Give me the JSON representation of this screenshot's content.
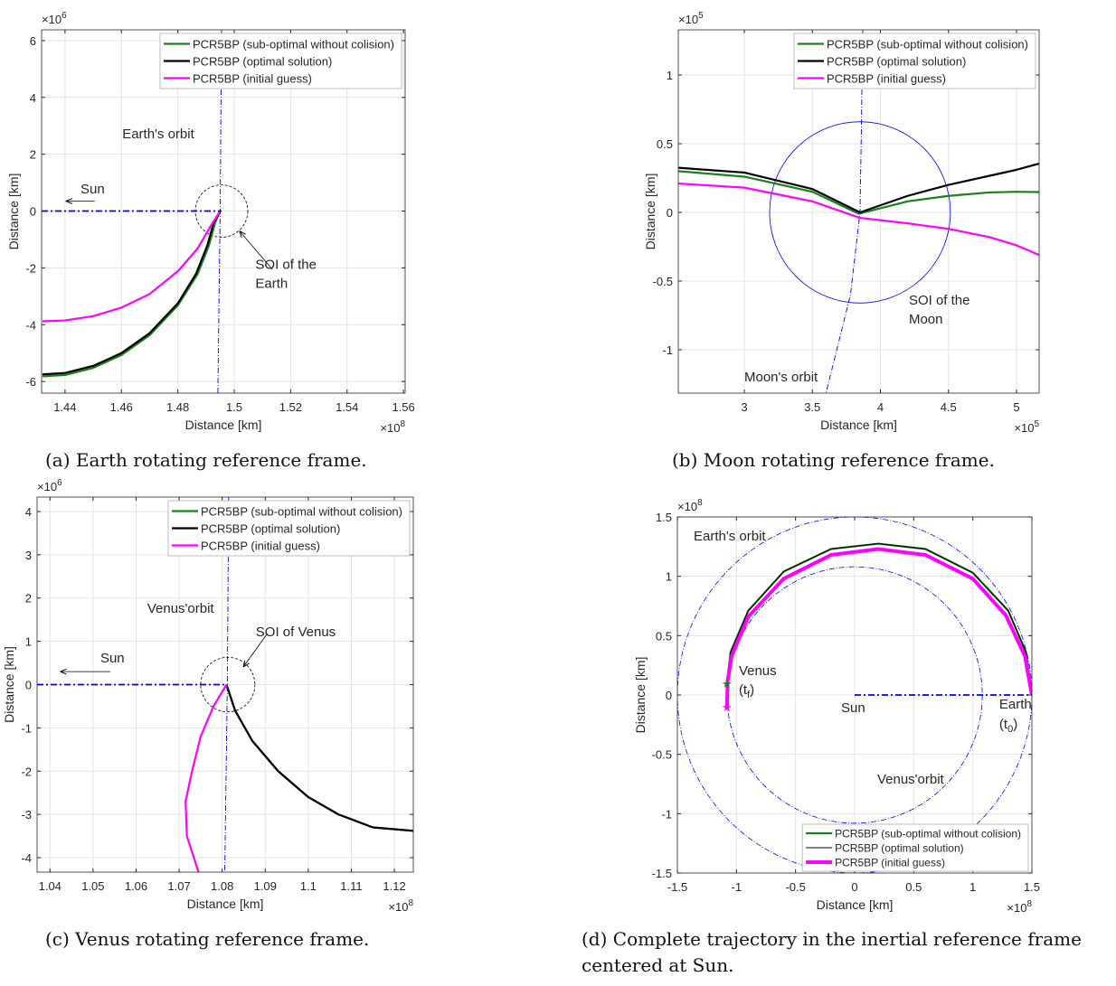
{
  "captions": [
    "(a) Earth rotating reference frame.",
    "(b) Moon rotating reference frame.",
    "(c) Venus rotating reference frame.",
    "(d) Complete trajectory in the inertial reference frame centered at Sun."
  ],
  "colors": {
    "sub_optimal": "#1a801a",
    "optimal": "#000000",
    "initial_guess": "#ff00ff",
    "orbit": "#0000ff",
    "soi": "#000000"
  },
  "chart_data": [
    {
      "type": "line",
      "xlabel": "Distance [km]",
      "ylabel": "Distance [km]",
      "x_exponent": "8",
      "y_exponent": "6",
      "xlim": [
        1.4317,
        1.5606
      ],
      "ylim": [
        -6.41,
        6.38
      ],
      "xticks": [
        1.44,
        1.46,
        1.48,
        1.5,
        1.52,
        1.54,
        1.56
      ],
      "xticklabels": [
        "1.44",
        "1.46",
        "1.48",
        "1.5",
        "1.52",
        "1.54",
        "1.56"
      ],
      "yticks": [
        -6,
        -4,
        -2,
        0,
        2,
        4,
        6
      ],
      "yticklabels": [
        "-6",
        "-4",
        "-2",
        "0",
        "2",
        "4",
        "6"
      ],
      "grid": true,
      "legend_placement": "top-right",
      "series": [
        {
          "name": "PCR5BP (sub-optimal without colision)",
          "color": "#1a801a",
          "legend": true,
          "points": [
            [
              1.432,
              -5.82
            ],
            [
              1.44,
              -5.77
            ],
            [
              1.45,
              -5.52
            ],
            [
              1.46,
              -5.07
            ],
            [
              1.47,
              -4.37
            ],
            [
              1.48,
              -3.32
            ],
            [
              1.487,
              -2.22
            ],
            [
              1.491,
              -1.22
            ],
            [
              1.4932,
              -0.42
            ],
            [
              1.4937,
              -0.3
            ],
            [
              1.495,
              0
            ]
          ]
        },
        {
          "name": "PCR5BP (optimal solution)",
          "color": "#000000",
          "legend": true,
          "points": [
            [
              1.432,
              -5.75
            ],
            [
              1.44,
              -5.7
            ],
            [
              1.45,
              -5.45
            ],
            [
              1.46,
              -5.0
            ],
            [
              1.47,
              -4.3
            ],
            [
              1.48,
              -3.25
            ],
            [
              1.4865,
              -2.2
            ],
            [
              1.4905,
              -1.2
            ],
            [
              1.4927,
              -0.4
            ],
            [
              1.4935,
              -0.27
            ],
            [
              1.495,
              0
            ]
          ]
        },
        {
          "name": "PCR5BP (initial guess)",
          "color": "#ff00ff",
          "legend": true,
          "points": [
            [
              1.432,
              -3.88
            ],
            [
              1.44,
              -3.85
            ],
            [
              1.45,
              -3.7
            ],
            [
              1.46,
              -3.4
            ],
            [
              1.47,
              -2.92
            ],
            [
              1.48,
              -2.12
            ],
            [
              1.487,
              -1.32
            ],
            [
              1.4915,
              -0.55
            ],
            [
              1.495,
              0
            ]
          ]
        },
        {
          "name": "",
          "color": "#0000ff",
          "style": "orbit",
          "points": [
            [
              1.4955,
              6.38
            ],
            [
              1.495,
              0
            ],
            [
              1.4942,
              -6.41
            ]
          ]
        },
        {
          "name": "",
          "color": "#0000ff",
          "style": "sunline",
          "points": [
            [
              1.4317,
              0
            ],
            [
              1.4955,
              0
            ]
          ]
        }
      ],
      "ellipses": [
        {
          "cx": 1.4955,
          "cy": 0,
          "rx": 0.0093,
          "ry": 0.92
        }
      ],
      "arrows": [
        [
          1.4505,
          0.35,
          1.4405,
          0.35
        ],
        [
          1.5135,
          -2.05,
          1.502,
          -0.72
        ]
      ],
      "annotations": [
        {
          "text": "Earth's orbit",
          "x": 1.4603,
          "y": 2.56
        },
        {
          "text": "Sun",
          "x": 1.4455,
          "y": 0.62
        },
        {
          "text": "SOI of the",
          "x": 1.5075,
          "y": -2.03
        },
        {
          "text": "Earth",
          "x": 1.5075,
          "y": -2.7
        }
      ]
    },
    {
      "type": "line",
      "xlabel": "Distance [km]",
      "ylabel": "Distance [km]",
      "x_exponent": "5",
      "y_exponent": "5",
      "xlim": [
        2.515,
        5.166
      ],
      "ylim": [
        -1.316,
        1.329
      ],
      "xticks": [
        3,
        3.5,
        4,
        4.5,
        5
      ],
      "xticklabels": [
        "3",
        "3.5",
        "4",
        "4.5",
        "5"
      ],
      "yticks": [
        -1,
        -0.5,
        0,
        0.5,
        1
      ],
      "yticklabels": [
        "-1",
        "-0.5",
        "0",
        "0.5",
        "1"
      ],
      "grid": true,
      "legend_placement": "top-right",
      "series": [
        {
          "name": "PCR5BP (sub-optimal without colision)",
          "color": "#1a801a",
          "legend": true,
          "points": [
            [
              2.515,
              0.3
            ],
            [
              3,
              0.26
            ],
            [
              3.5,
              0.15
            ],
            [
              3.84,
              -0.01
            ],
            [
              4.2,
              0.08
            ],
            [
              4.5,
              0.12
            ],
            [
              4.8,
              0.145
            ],
            [
              5,
              0.15
            ],
            [
              5.166,
              0.148
            ]
          ]
        },
        {
          "name": "PCR5BP (optimal solution)",
          "color": "#000000",
          "legend": true,
          "points": [
            [
              2.515,
              0.325
            ],
            [
              3,
              0.29
            ],
            [
              3.5,
              0.17
            ],
            [
              3.85,
              0.0
            ],
            [
              4.2,
              0.12
            ],
            [
              4.5,
              0.2
            ],
            [
              5,
              0.31
            ],
            [
              5.166,
              0.355
            ]
          ]
        },
        {
          "name": "PCR5BP (initial guess)",
          "color": "#ff00ff",
          "legend": true,
          "points": [
            [
              2.515,
              0.21
            ],
            [
              3,
              0.18
            ],
            [
              3.5,
              0.08
            ],
            [
              3.85,
              -0.04
            ],
            [
              4.2,
              -0.08
            ],
            [
              4.5,
              -0.12
            ],
            [
              4.8,
              -0.18
            ],
            [
              5,
              -0.24
            ],
            [
              5.166,
              -0.31
            ]
          ]
        },
        {
          "name": "",
          "color": "#0000ff",
          "style": "orbit",
          "points": [
            [
              3.87,
              1.329
            ],
            [
              3.86,
              0.6
            ],
            [
              3.85,
              0
            ],
            [
              3.78,
              -0.6
            ],
            [
              3.6,
              -1.316
            ]
          ]
        }
      ],
      "ellipses": [
        {
          "cx": 3.85,
          "cy": 0,
          "rx": 0.664,
          "ry": 0.66,
          "color": "#0000ff"
        }
      ],
      "arrows": [],
      "annotations": [
        {
          "text": "SOI of the",
          "x": 4.209,
          "y": -0.671
        },
        {
          "text": "Moon",
          "x": 4.209,
          "y": -0.809
        },
        {
          "text": "Moon's orbit",
          "x": 3.0,
          "y": -1.23
        }
      ]
    },
    {
      "type": "line",
      "xlabel": "Distance [km]",
      "ylabel": "Distance [km]",
      "x_exponent": "8",
      "y_exponent": "6",
      "xlim": [
        1.037,
        1.1244
      ],
      "ylim": [
        -4.334,
        4.334
      ],
      "xticks": [
        1.04,
        1.05,
        1.06,
        1.07,
        1.08,
        1.09,
        1.1,
        1.11,
        1.12
      ],
      "xticklabels": [
        "1.04",
        "1.05",
        "1.06",
        "1.07",
        "1.08",
        "1.09",
        "1.1",
        "1.11",
        "1.12"
      ],
      "yticks": [
        -4,
        -3,
        -2,
        -1,
        0,
        1,
        2,
        3,
        4
      ],
      "yticklabels": [
        "-4",
        "-3",
        "-2",
        "-1",
        "0",
        "1",
        "2",
        "3",
        "4"
      ],
      "grid": true,
      "legend_placement": "top-right",
      "series": [
        {
          "name": "PCR5BP (sub-optimal without colision)",
          "color": "#1a801a",
          "legend": true,
          "points": [
            [
              1.081,
              0
            ],
            [
              1.083,
              -0.6
            ],
            [
              1.087,
              -1.3
            ],
            [
              1.093,
              -2.0
            ],
            [
              1.1,
              -2.6
            ],
            [
              1.107,
              -3.0
            ],
            [
              1.115,
              -3.3
            ],
            [
              1.1244,
              -3.38
            ]
          ]
        },
        {
          "name": "PCR5BP (optimal solution)",
          "color": "#000000",
          "legend": true,
          "points": [
            [
              1.081,
              0
            ],
            [
              1.083,
              -0.6
            ],
            [
              1.087,
              -1.3
            ],
            [
              1.093,
              -2.0
            ],
            [
              1.1,
              -2.6
            ],
            [
              1.107,
              -3.0
            ],
            [
              1.115,
              -3.3
            ],
            [
              1.1244,
              -3.38
            ]
          ]
        },
        {
          "name": "PCR5BP (initial guess)",
          "color": "#ff00ff",
          "legend": true,
          "points": [
            [
              1.081,
              0
            ],
            [
              1.078,
              -0.5
            ],
            [
              1.075,
              -1.2
            ],
            [
              1.073,
              -2.0
            ],
            [
              1.0715,
              -2.7
            ],
            [
              1.0718,
              -3.5
            ],
            [
              1.0745,
              -4.334
            ]
          ]
        },
        {
          "name": "",
          "color": "#0000ff",
          "style": "orbit",
          "points": [
            [
              1.0815,
              4.334
            ],
            [
              1.0812,
              0
            ],
            [
              1.0806,
              -4.334
            ]
          ]
        },
        {
          "name": "",
          "color": "#0000ff",
          "style": "sunline",
          "points": [
            [
              1.037,
              0
            ],
            [
              1.0812,
              0
            ]
          ]
        }
      ],
      "ellipses": [
        {
          "cx": 1.0813,
          "cy": 0,
          "rx": 0.0063,
          "ry": 0.63
        }
      ],
      "arrows": [
        [
          1.054,
          0.3,
          1.0425,
          0.3
        ],
        [
          1.0905,
          1.18,
          1.085,
          0.42
        ]
      ],
      "annotations": [
        {
          "text": "Venus'orbit",
          "x": 1.0626,
          "y": 1.662
        },
        {
          "text": "SOI of Venus",
          "x": 1.0878,
          "y": 1.12
        },
        {
          "text": "Sun",
          "x": 1.0517,
          "y": 0.514
        }
      ]
    },
    {
      "type": "line",
      "xlabel": "Distance [km]",
      "ylabel": "Distance [km]",
      "x_exponent": "8",
      "y_exponent": "8",
      "xlim": [
        -1.5,
        1.5
      ],
      "ylim": [
        -1.5,
        1.5
      ],
      "xticks": [
        -1.5,
        -1,
        -0.5,
        0,
        0.5,
        1,
        1.5
      ],
      "xticklabels": [
        "-1.5",
        "-1",
        "-0.5",
        "0",
        "0.5",
        "1",
        "1.5"
      ],
      "yticks": [
        -1.5,
        -1,
        -0.5,
        0,
        0.5,
        1,
        1.5
      ],
      "yticklabels": [
        "-1.5",
        "-1",
        "-0.5",
        "0",
        "0.5",
        "1",
        "1.5"
      ],
      "grid": true,
      "legend_placement": "bottom-right",
      "series": [
        {
          "name": "PCR5BP (sub-optimal without colision)",
          "color": "#1a801a",
          "legend": true,
          "points": [
            [
              1.5,
              0
            ],
            [
              1.45,
              0.36
            ],
            [
              1.3,
              0.71
            ],
            [
              1.0,
              1.03
            ],
            [
              0.6,
              1.23
            ],
            [
              0.2,
              1.275
            ],
            [
              -0.2,
              1.23
            ],
            [
              -0.6,
              1.04
            ],
            [
              -0.9,
              0.71
            ],
            [
              -1.05,
              0.36
            ],
            [
              -1.08,
              0.1
            ]
          ]
        },
        {
          "name": "PCR5BP (optimal solution)",
          "color": "#000000",
          "legend": true,
          "thin": true,
          "points": [
            [
              1.5,
              0
            ],
            [
              1.45,
              0.36
            ],
            [
              1.3,
              0.71
            ],
            [
              1.0,
              1.03
            ],
            [
              0.6,
              1.23
            ],
            [
              0.2,
              1.275
            ],
            [
              -0.2,
              1.23
            ],
            [
              -0.6,
              1.04
            ],
            [
              -0.9,
              0.71
            ],
            [
              -1.05,
              0.36
            ],
            [
              -1.08,
              0.1
            ]
          ]
        },
        {
          "name": "PCR5BP (initial guess)",
          "color": "#ff00ff",
          "legend": true,
          "thick": true,
          "points": [
            [
              1.5,
              0
            ],
            [
              1.44,
              0.33
            ],
            [
              1.28,
              0.67
            ],
            [
              1.0,
              0.98
            ],
            [
              0.6,
              1.18
            ],
            [
              0.2,
              1.23
            ],
            [
              -0.2,
              1.18
            ],
            [
              -0.6,
              0.98
            ],
            [
              -0.9,
              0.66
            ],
            [
              -1.04,
              0.33
            ],
            [
              -1.075,
              0.12
            ],
            [
              -1.08,
              -0.1
            ]
          ]
        },
        {
          "name": "",
          "color": "#0000ff",
          "style": "sunline",
          "points": [
            [
              0,
              0
            ],
            [
              1.5,
              0
            ]
          ]
        }
      ],
      "ellipses": [
        {
          "cx": 0,
          "cy": 0,
          "rx": 1.5,
          "ry": 1.5,
          "color": "#0000ff",
          "style": "dashdot"
        },
        {
          "cx": 0,
          "cy": 0,
          "rx": 1.08,
          "ry": 1.08,
          "color": "#0000ff",
          "style": "dashdot"
        }
      ],
      "markers": [
        {
          "x": -1.08,
          "y": 0.1,
          "color": "#1a801a",
          "symbol": "★"
        },
        {
          "x": -1.08,
          "y": -0.1,
          "color": "#ff00ff",
          "symbol": "★"
        }
      ],
      "arrows": [],
      "annotations": [
        {
          "text": "Earth's orbit",
          "x": -1.362,
          "y": 1.302
        },
        {
          "text": "Venus",
          "x": -0.98,
          "y": 0.167
        },
        {
          "text": "(t",
          "sub": "f",
          "suffix": ")",
          "x": -0.98,
          "y": 0.007
        },
        {
          "text": "Sun",
          "x": -0.115,
          "y": -0.145
        },
        {
          "text": "Earth",
          "x": 1.224,
          "y": -0.115
        },
        {
          "text": "(t",
          "sub": "0",
          "suffix": ")",
          "x": 1.224,
          "y": -0.282
        },
        {
          "text": "Venus'orbit",
          "x": 0.191,
          "y": -0.747
        }
      ]
    }
  ]
}
